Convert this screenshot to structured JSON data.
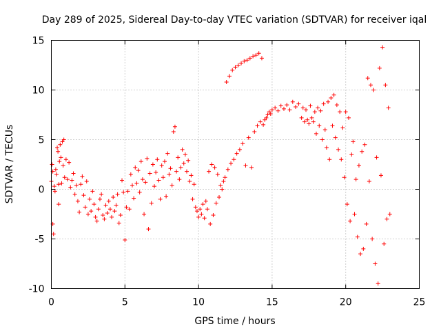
{
  "chart_data": {
    "type": "scatter",
    "title": "Day 289 of 2025, Sidereal Day-to-day VTEC variation (SDTVAR) for receiver iqal",
    "xlabel": "GPS time / hours",
    "ylabel": "SDTVAR / TECUs",
    "xlim": [
      0,
      25
    ],
    "ylim": [
      -10,
      15
    ],
    "xticks": [
      "0",
      "5",
      "10",
      "15",
      "20",
      "25"
    ],
    "yticks": [
      "-10",
      "-5",
      "0",
      "5",
      "10",
      "15"
    ],
    "grid": true,
    "marker": "+",
    "color": "#ff0000",
    "series": [
      {
        "name": "sdtvar",
        "points": [
          [
            0.0,
            0.8
          ],
          [
            0.05,
            2.5
          ],
          [
            0.1,
            -3.5
          ],
          [
            0.1,
            1.8
          ],
          [
            0.15,
            -4.5
          ],
          [
            0.2,
            0.3
          ],
          [
            0.25,
            -0.2
          ],
          [
            0.3,
            2.0
          ],
          [
            0.35,
            1.5
          ],
          [
            0.4,
            4.2
          ],
          [
            0.45,
            3.8
          ],
          [
            0.5,
            0.5
          ],
          [
            0.5,
            -1.5
          ],
          [
            0.55,
            2.8
          ],
          [
            0.6,
            4.5
          ],
          [
            0.65,
            3.2
          ],
          [
            0.7,
            0.6
          ],
          [
            0.75,
            4.8
          ],
          [
            0.8,
            2.4
          ],
          [
            0.85,
            5.0
          ],
          [
            0.9,
            1.2
          ],
          [
            1.0,
            3.0
          ],
          [
            1.1,
            1.0
          ],
          [
            1.2,
            2.7
          ],
          [
            1.3,
            0.2
          ],
          [
            1.4,
            0.9
          ],
          [
            1.5,
            1.6
          ],
          [
            1.6,
            -0.5
          ],
          [
            1.7,
            0.4
          ],
          [
            1.8,
            -1.2
          ],
          [
            1.9,
            -2.3
          ],
          [
            2.0,
            0.5
          ],
          [
            2.1,
            1.3
          ],
          [
            2.2,
            -0.6
          ],
          [
            2.3,
            -1.8
          ],
          [
            2.4,
            0.8
          ],
          [
            2.5,
            -2.5
          ],
          [
            2.6,
            -1.0
          ],
          [
            2.7,
            -2.2
          ],
          [
            2.8,
            -0.2
          ],
          [
            2.9,
            -1.5
          ],
          [
            3.0,
            -2.8
          ],
          [
            3.1,
            -3.2
          ],
          [
            3.2,
            -2.0
          ],
          [
            3.3,
            -1.0
          ],
          [
            3.4,
            -0.5
          ],
          [
            3.5,
            -2.6
          ],
          [
            3.6,
            -3.0
          ],
          [
            3.7,
            -1.6
          ],
          [
            3.8,
            -2.4
          ],
          [
            3.9,
            -1.2
          ],
          [
            4.0,
            -2.0
          ],
          [
            4.1,
            -2.8
          ],
          [
            4.2,
            -0.8
          ],
          [
            4.3,
            -2.2
          ],
          [
            4.4,
            -1.6
          ],
          [
            4.5,
            -0.5
          ],
          [
            4.6,
            -3.4
          ],
          [
            4.7,
            -2.6
          ],
          [
            4.8,
            0.9
          ],
          [
            4.9,
            -0.3
          ],
          [
            5.0,
            -5.1
          ],
          [
            5.1,
            -1.8
          ],
          [
            5.2,
            -0.2
          ],
          [
            5.3,
            -2.0
          ],
          [
            5.4,
            1.5
          ],
          [
            5.5,
            0.4
          ],
          [
            5.6,
            -0.9
          ],
          [
            5.7,
            2.2
          ],
          [
            5.8,
            0.6
          ],
          [
            5.9,
            1.9
          ],
          [
            6.0,
            -0.3
          ],
          [
            6.1,
            2.8
          ],
          [
            6.2,
            1.0
          ],
          [
            6.3,
            -2.5
          ],
          [
            6.4,
            0.7
          ],
          [
            6.5,
            3.1
          ],
          [
            6.6,
            -4.0
          ],
          [
            6.7,
            1.6
          ],
          [
            6.8,
            -1.4
          ],
          [
            6.9,
            2.5
          ],
          [
            7.0,
            0.3
          ],
          [
            7.1,
            1.7
          ],
          [
            7.2,
            3.0
          ],
          [
            7.3,
            0.9
          ],
          [
            7.4,
            -1.0
          ],
          [
            7.5,
            2.4
          ],
          [
            7.6,
            1.2
          ],
          [
            7.7,
            2.8
          ],
          [
            7.8,
            -0.7
          ],
          [
            7.9,
            3.6
          ],
          [
            8.0,
            1.5
          ],
          [
            8.1,
            2.1
          ],
          [
            8.2,
            0.4
          ],
          [
            8.3,
            5.8
          ],
          [
            8.4,
            6.3
          ],
          [
            8.5,
            1.8
          ],
          [
            8.6,
            3.2
          ],
          [
            8.7,
            1.0
          ],
          [
            8.8,
            2.2
          ],
          [
            8.9,
            4.0
          ],
          [
            9.0,
            2.6
          ],
          [
            9.1,
            3.5
          ],
          [
            9.2,
            1.8
          ],
          [
            9.3,
            2.9
          ],
          [
            9.4,
            0.8
          ],
          [
            9.5,
            1.4
          ],
          [
            9.6,
            -1.0
          ],
          [
            9.7,
            0.5
          ],
          [
            9.8,
            -1.8
          ],
          [
            9.9,
            -2.2
          ],
          [
            10.0,
            -2.8
          ],
          [
            10.1,
            -2.0
          ],
          [
            10.2,
            -2.5
          ],
          [
            10.3,
            -1.5
          ],
          [
            10.4,
            -2.9
          ],
          [
            10.5,
            -1.2
          ],
          [
            10.6,
            -2.0
          ],
          [
            10.7,
            1.8
          ],
          [
            10.8,
            -3.5
          ],
          [
            10.9,
            2.5
          ],
          [
            11.0,
            -2.6
          ],
          [
            11.1,
            2.2
          ],
          [
            11.2,
            -1.4
          ],
          [
            11.3,
            1.5
          ],
          [
            11.4,
            -0.8
          ],
          [
            11.5,
            0.4
          ],
          [
            11.6,
            0.0
          ],
          [
            11.7,
            0.8
          ],
          [
            11.8,
            1.2
          ],
          [
            11.9,
            10.8
          ],
          [
            12.0,
            2.0
          ],
          [
            12.1,
            11.4
          ],
          [
            12.2,
            2.6
          ],
          [
            12.3,
            12.0
          ],
          [
            12.4,
            3.0
          ],
          [
            12.5,
            12.3
          ],
          [
            12.6,
            3.6
          ],
          [
            12.7,
            12.5
          ],
          [
            12.8,
            4.0
          ],
          [
            12.9,
            12.7
          ],
          [
            13.0,
            4.6
          ],
          [
            13.1,
            12.9
          ],
          [
            13.2,
            2.4
          ],
          [
            13.3,
            13.0
          ],
          [
            13.4,
            5.2
          ],
          [
            13.5,
            13.2
          ],
          [
            13.6,
            2.2
          ],
          [
            13.7,
            13.4
          ],
          [
            13.8,
            5.8
          ],
          [
            13.9,
            13.5
          ],
          [
            14.0,
            6.4
          ],
          [
            14.1,
            13.7
          ],
          [
            14.2,
            6.8
          ],
          [
            14.3,
            13.2
          ],
          [
            14.4,
            6.5
          ],
          [
            14.5,
            7.0
          ],
          [
            14.6,
            7.2
          ],
          [
            14.7,
            7.5
          ],
          [
            14.8,
            7.8
          ],
          [
            14.9,
            7.6
          ],
          [
            15.0,
            8.0
          ],
          [
            15.2,
            8.2
          ],
          [
            15.4,
            7.9
          ],
          [
            15.6,
            8.4
          ],
          [
            15.8,
            8.1
          ],
          [
            16.0,
            8.5
          ],
          [
            16.2,
            8.0
          ],
          [
            16.4,
            8.8
          ],
          [
            16.6,
            8.3
          ],
          [
            16.8,
            8.6
          ],
          [
            17.0,
            7.2
          ],
          [
            17.1,
            8.2
          ],
          [
            17.2,
            6.8
          ],
          [
            17.3,
            8.0
          ],
          [
            17.4,
            7.0
          ],
          [
            17.5,
            6.6
          ],
          [
            17.6,
            8.4
          ],
          [
            17.7,
            7.2
          ],
          [
            17.8,
            6.8
          ],
          [
            17.9,
            7.8
          ],
          [
            18.0,
            5.6
          ],
          [
            18.1,
            8.2
          ],
          [
            18.2,
            6.4
          ],
          [
            18.3,
            7.9
          ],
          [
            18.4,
            5.0
          ],
          [
            18.5,
            8.6
          ],
          [
            18.6,
            6.0
          ],
          [
            18.7,
            4.2
          ],
          [
            18.8,
            8.8
          ],
          [
            18.9,
            3.0
          ],
          [
            19.0,
            9.2
          ],
          [
            19.1,
            6.4
          ],
          [
            19.2,
            9.5
          ],
          [
            19.3,
            5.2
          ],
          [
            19.4,
            8.5
          ],
          [
            19.5,
            4.0
          ],
          [
            19.6,
            7.8
          ],
          [
            19.7,
            3.0
          ],
          [
            19.8,
            6.2
          ],
          [
            19.9,
            1.2
          ],
          [
            20.0,
            7.8
          ],
          [
            20.1,
            -1.5
          ],
          [
            20.2,
            7.2
          ],
          [
            20.3,
            -3.2
          ],
          [
            20.4,
            3.5
          ],
          [
            20.5,
            4.8
          ],
          [
            20.6,
            -2.5
          ],
          [
            20.7,
            1.0
          ],
          [
            20.8,
            -4.8
          ],
          [
            20.9,
            2.4
          ],
          [
            21.0,
            -6.5
          ],
          [
            21.1,
            3.8
          ],
          [
            21.2,
            -6.0
          ],
          [
            21.3,
            4.5
          ],
          [
            21.4,
            -3.5
          ],
          [
            21.5,
            11.2
          ],
          [
            21.6,
            0.8
          ],
          [
            21.7,
            10.5
          ],
          [
            21.8,
            -5.0
          ],
          [
            21.9,
            10.0
          ],
          [
            22.0,
            -7.5
          ],
          [
            22.1,
            3.2
          ],
          [
            22.2,
            -9.5
          ],
          [
            22.3,
            12.2
          ],
          [
            22.4,
            1.4
          ],
          [
            22.5,
            14.3
          ],
          [
            22.6,
            -5.5
          ],
          [
            22.7,
            10.5
          ],
          [
            22.8,
            -3.0
          ],
          [
            22.9,
            8.2
          ],
          [
            23.0,
            -2.5
          ]
        ]
      }
    ]
  }
}
